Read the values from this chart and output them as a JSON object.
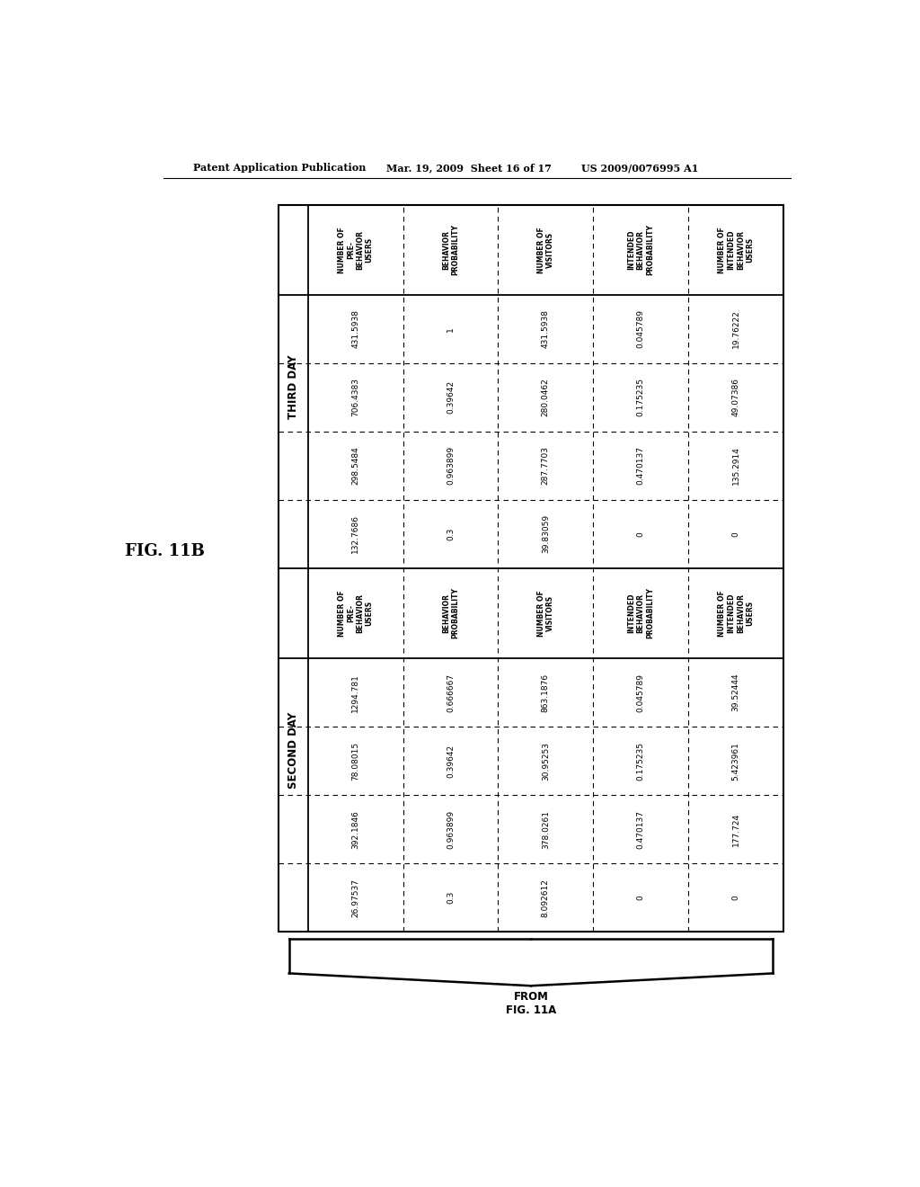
{
  "header_text_left": "Patent Application Publication",
  "header_text_mid": "Mar. 19, 2009  Sheet 16 of 17",
  "header_text_right": "US 2009/0076995 A1",
  "fig_label": "FIG. 11B",
  "from_label": "FROM\nFIG. 11A",
  "second_day_label": "SECOND DAY",
  "third_day_label": "THIRD DAY",
  "col_headers": [
    "NUMBER OF\nPRE-\nBEHAVIOR\nUSERS",
    "BEHAVIOR\nPROBABILITY",
    "NUMBER OF\nVISITORS",
    "INTENDED\nBEHAVIOR\nPROBABILITY",
    "NUMBER OF\nINTENDED\nBEHAVIOR\nUSERS"
  ],
  "second_day_rows": [
    [
      "1294.781",
      "0.666667",
      "863.1876",
      "0.045789",
      "39.52444"
    ],
    [
      "78.08015",
      "0.39642",
      "30.95253",
      "0.175235",
      "5.423961"
    ],
    [
      "392.1846",
      "0.963899",
      "378.0261",
      "0.470137",
      "177.724"
    ],
    [
      "26.97537",
      "0.3",
      "8.092612",
      "0",
      "0"
    ]
  ],
  "third_day_rows": [
    [
      "431.5938",
      "1",
      "431.5938",
      "0.045789",
      "19.76222"
    ],
    [
      "706.4383",
      "0.39642",
      "280.0462",
      "0.175235",
      "49.07386"
    ],
    [
      "298.5484",
      "0.963899",
      "287.7703",
      "0.470137",
      "135.2914"
    ],
    [
      "132.7686",
      "0.3",
      "39.83059",
      "0",
      "0"
    ]
  ],
  "bg_color": "#ffffff"
}
